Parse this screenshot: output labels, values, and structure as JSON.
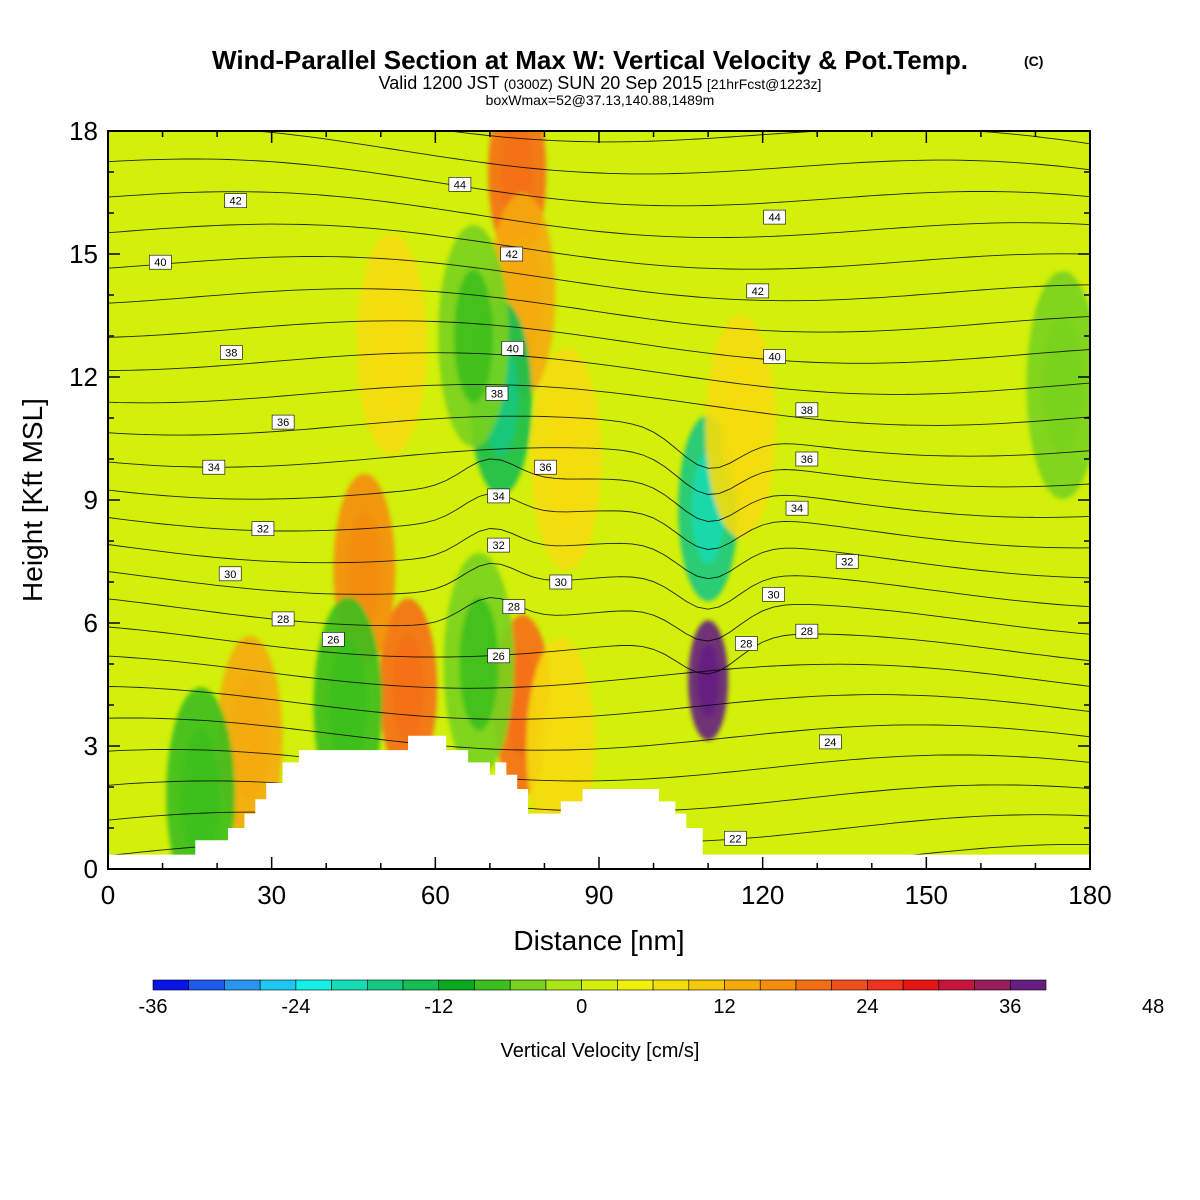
{
  "header": {
    "title": "Wind-Parallel Section at Max W: Vertical Velocity & Pot.Temp.",
    "copyright": "(C)",
    "valid_line_a": "Valid 1200 JST",
    "valid_line_b": "(0300Z)",
    "valid_line_c": "SUN 20 Sep 2015",
    "valid_line_d": "[21hrFcst@1223z]",
    "box_line": "boxWmax=52@37.13,140.88,1489m"
  },
  "chart_data": {
    "type": "heatmap",
    "xlabel": "Distance [nm]",
    "ylabel": "Height [Kft MSL]",
    "xlim": [
      0,
      180
    ],
    "ylim": [
      0,
      18
    ],
    "x_ticks": [
      0,
      30,
      60,
      90,
      120,
      150,
      180
    ],
    "y_ticks": [
      0,
      3,
      6,
      9,
      12,
      15,
      18
    ],
    "background_level_cm_s": 0,
    "terrain_profile": [
      [
        0,
        0.35
      ],
      [
        16,
        0.35
      ],
      [
        16,
        0.7
      ],
      [
        22,
        0.7
      ],
      [
        22,
        1.0
      ],
      [
        25,
        1.0
      ],
      [
        25,
        1.35
      ],
      [
        27,
        1.35
      ],
      [
        27,
        1.7
      ],
      [
        29,
        1.7
      ],
      [
        29,
        2.1
      ],
      [
        32,
        2.1
      ],
      [
        32,
        2.6
      ],
      [
        35,
        2.6
      ],
      [
        35,
        2.9
      ],
      [
        55,
        2.9
      ],
      [
        55,
        3.25
      ],
      [
        62,
        3.25
      ],
      [
        62,
        2.9
      ],
      [
        66,
        2.9
      ],
      [
        66,
        2.6
      ],
      [
        70,
        2.6
      ],
      [
        70,
        2.3
      ],
      [
        71,
        2.3
      ],
      [
        71,
        2.6
      ],
      [
        73,
        2.6
      ],
      [
        73,
        2.3
      ],
      [
        75,
        2.3
      ],
      [
        75,
        1.95
      ],
      [
        77,
        1.95
      ],
      [
        77,
        1.35
      ],
      [
        83,
        1.35
      ],
      [
        83,
        1.65
      ],
      [
        87,
        1.65
      ],
      [
        87,
        1.95
      ],
      [
        101,
        1.95
      ],
      [
        101,
        1.65
      ],
      [
        104,
        1.65
      ],
      [
        104,
        1.35
      ],
      [
        106,
        1.35
      ],
      [
        106,
        1.0
      ],
      [
        109,
        1.0
      ],
      [
        109,
        0.35
      ],
      [
        180,
        0.35
      ]
    ],
    "vertical_velocity_features": [
      {
        "x": 75,
        "y": 17,
        "value": 20
      },
      {
        "x": 76,
        "y": 14,
        "value": 12
      },
      {
        "x": 72,
        "y": 11.5,
        "value": -15
      },
      {
        "x": 110,
        "y": 8.8,
        "value": -18
      },
      {
        "x": 110,
        "y": 4.6,
        "value": 44
      },
      {
        "x": 55,
        "y": 4.4,
        "value": 20
      },
      {
        "x": 76,
        "y": 4.0,
        "value": 20
      },
      {
        "x": 47,
        "y": 7.3,
        "value": 16
      },
      {
        "x": 26,
        "y": 3.2,
        "value": 12
      },
      {
        "x": 83,
        "y": 3.0,
        "value": 8
      },
      {
        "x": 52,
        "y": 12.8,
        "value": 6
      },
      {
        "x": 116,
        "y": 10.8,
        "value": 6
      },
      {
        "x": 84,
        "y": 10.0,
        "value": 6
      },
      {
        "x": 67,
        "y": 13.0,
        "value": -6
      },
      {
        "x": 175,
        "y": 11.8,
        "value": -4
      },
      {
        "x": 17,
        "y": 1.8,
        "value": -8
      },
      {
        "x": 68,
        "y": 5.0,
        "value": -6
      },
      {
        "x": 44,
        "y": 4.0,
        "value": -8
      }
    ],
    "contour_series": [
      {
        "name": "theta",
        "interval": 1,
        "min": 21,
        "max": 46
      }
    ],
    "contour_labels": [
      {
        "text": "44",
        "x": 64.5,
        "y": 16.7
      },
      {
        "text": "42",
        "x": 23.4,
        "y": 16.3
      },
      {
        "text": "40",
        "x": 9.6,
        "y": 14.8
      },
      {
        "text": "42",
        "x": 74.0,
        "y": 15.0
      },
      {
        "text": "44",
        "x": 122.2,
        "y": 15.9
      },
      {
        "text": "42",
        "x": 119.1,
        "y": 14.1
      },
      {
        "text": "40",
        "x": 74.2,
        "y": 12.7
      },
      {
        "text": "40",
        "x": 122.2,
        "y": 12.5
      },
      {
        "text": "38",
        "x": 22.6,
        "y": 12.6
      },
      {
        "text": "38",
        "x": 71.3,
        "y": 11.6
      },
      {
        "text": "38",
        "x": 128.1,
        "y": 11.2
      },
      {
        "text": "36",
        "x": 32.1,
        "y": 10.9
      },
      {
        "text": "36",
        "x": 80.2,
        "y": 9.8
      },
      {
        "text": "36",
        "x": 128.1,
        "y": 10.0
      },
      {
        "text": "34",
        "x": 19.4,
        "y": 9.8
      },
      {
        "text": "34",
        "x": 71.6,
        "y": 9.1
      },
      {
        "text": "34",
        "x": 126.3,
        "y": 8.8
      },
      {
        "text": "32",
        "x": 28.4,
        "y": 8.3
      },
      {
        "text": "32",
        "x": 71.6,
        "y": 7.9
      },
      {
        "text": "32",
        "x": 135.5,
        "y": 7.5
      },
      {
        "text": "30",
        "x": 22.4,
        "y": 7.2
      },
      {
        "text": "30",
        "x": 83.0,
        "y": 7.0
      },
      {
        "text": "30",
        "x": 122.0,
        "y": 6.7
      },
      {
        "text": "28",
        "x": 32.1,
        "y": 6.1
      },
      {
        "text": "28",
        "x": 74.4,
        "y": 6.4
      },
      {
        "text": "28",
        "x": 128.1,
        "y": 5.8
      },
      {
        "text": "28",
        "x": 117.0,
        "y": 5.5
      },
      {
        "text": "26",
        "x": 41.3,
        "y": 5.6
      },
      {
        "text": "26",
        "x": 71.6,
        "y": 5.2
      },
      {
        "text": "24",
        "x": 132.4,
        "y": 3.1
      },
      {
        "text": "22",
        "x": 115.0,
        "y": 0.75
      }
    ]
  },
  "colorbar": {
    "label": "Vertical Velocity [cm/s]",
    "levels": [
      -36,
      -33,
      -30,
      -27,
      -24,
      -21,
      -18,
      -15,
      -12,
      -9,
      -6,
      -3,
      0,
      3,
      6,
      9,
      12,
      15,
      18,
      21,
      24,
      27,
      30,
      33,
      36,
      39,
      42,
      45,
      48,
      51
    ],
    "tick_labels": [
      "-36",
      "-24",
      "-12",
      "0",
      "12",
      "24",
      "36",
      "48"
    ],
    "colors": [
      "#0a14e6",
      "#1e5af0",
      "#2896f0",
      "#1ec8f5",
      "#14f0e6",
      "#14dcb4",
      "#14c882",
      "#14be50",
      "#0aaa1e",
      "#3cbe1e",
      "#78d21e",
      "#aae614",
      "#d2f00a",
      "#f0f00a",
      "#f5dc0a",
      "#f5c80a",
      "#f5aa0a",
      "#f58c0a",
      "#f56e14",
      "#f0501e",
      "#f0321e",
      "#e61414",
      "#c8143c",
      "#961e5a",
      "#641e82"
    ]
  }
}
